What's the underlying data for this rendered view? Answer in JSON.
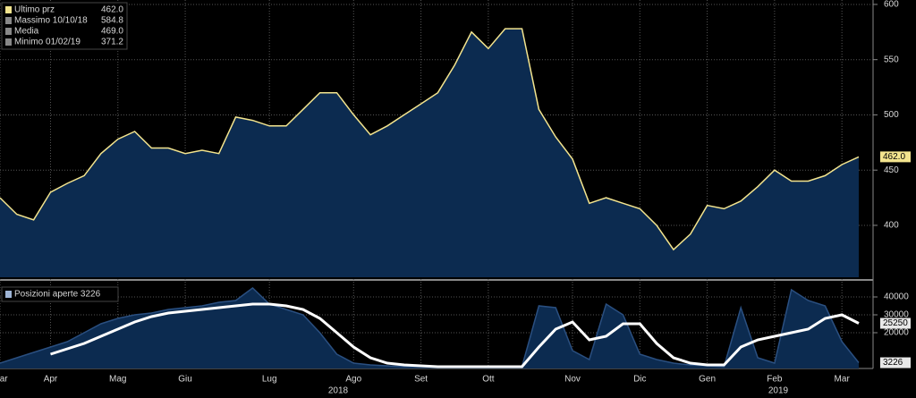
{
  "chart_data": [
    {
      "type": "area-line",
      "legend_stats": [
        {
          "label": "Ultimo prz",
          "value": "462.0"
        },
        {
          "label": "Massimo 10/10/18",
          "value": "584.8"
        },
        {
          "label": "Media",
          "value": "469.0"
        },
        {
          "label": "Minimo 01/02/19",
          "value": "371.2"
        }
      ],
      "categories": [
        "Mar",
        null,
        null,
        "Apr",
        null,
        null,
        null,
        "Mag",
        null,
        null,
        null,
        "Giu",
        null,
        null,
        null,
        null,
        "Lug",
        null,
        null,
        null,
        null,
        "Ago",
        null,
        null,
        null,
        "Set",
        null,
        null,
        null,
        "Ott",
        null,
        null,
        null,
        null,
        "Nov",
        null,
        null,
        null,
        "Dic",
        null,
        null,
        null,
        "Gen",
        null,
        null,
        null,
        "Feb",
        null,
        null,
        null,
        "Mar",
        null
      ],
      "year_labels": [
        "2018",
        "2019"
      ],
      "series": [
        {
          "name": "Ultimo prz",
          "color": "#f3e48e",
          "fill": "#0c2b50",
          "last_label": "462.0",
          "values": [
            425,
            410,
            405,
            430,
            438,
            445,
            465,
            478,
            485,
            470,
            470,
            465,
            468,
            465,
            498,
            495,
            490,
            490,
            505,
            520,
            520,
            500,
            482,
            490,
            500,
            510,
            520,
            545,
            575,
            560,
            578,
            578,
            505,
            480,
            460,
            420,
            425,
            420,
            415,
            400,
            378,
            392,
            418,
            415,
            422,
            435,
            450,
            440,
            440,
            445,
            455,
            462
          ]
        }
      ],
      "ylim": [
        353,
        604
      ],
      "yticks": [
        400,
        450,
        500,
        550,
        600
      ],
      "grid": true
    },
    {
      "type": "area-line",
      "legend_stats": [
        {
          "label": "Posizioni aperte 3226"
        }
      ],
      "series": [
        {
          "name": "Posizioni aperte",
          "color": "#2a4f80",
          "fill": "#0c2b50",
          "last_label": "3226",
          "values": [
            3000,
            6000,
            9000,
            12000,
            15000,
            20000,
            25000,
            28000,
            30000,
            31000,
            33000,
            34000,
            35000,
            37000,
            38000,
            45000,
            36000,
            33000,
            30000,
            20000,
            8000,
            3000,
            2000,
            1500,
            1000,
            1000,
            1000,
            1000,
            1000,
            1000,
            1000,
            1000,
            35000,
            34000,
            10000,
            5000,
            36000,
            30000,
            8000,
            5000,
            3000,
            2000,
            1500,
            1000,
            34000,
            6000,
            3000,
            44000,
            38000,
            35000,
            15000,
            3226
          ]
        },
        {
          "name": "Media",
          "color": "#ffffff",
          "last_label": "25250",
          "values": [
            null,
            null,
            null,
            8000,
            11000,
            14000,
            18000,
            22000,
            26000,
            29000,
            31000,
            32000,
            33000,
            34000,
            35000,
            36000,
            36000,
            35000,
            33000,
            28000,
            20000,
            12000,
            6000,
            3000,
            2000,
            1500,
            1000,
            1000,
            1000,
            1000,
            1000,
            1000,
            12000,
            22000,
            26000,
            16000,
            18000,
            25000,
            25000,
            14000,
            6000,
            3000,
            2000,
            2000,
            12000,
            16000,
            18000,
            20000,
            22000,
            28000,
            30000,
            25250
          ]
        }
      ],
      "ylim": [
        0,
        47000
      ],
      "yticks": [
        20000,
        30000,
        40000
      ],
      "grid": true
    }
  ]
}
